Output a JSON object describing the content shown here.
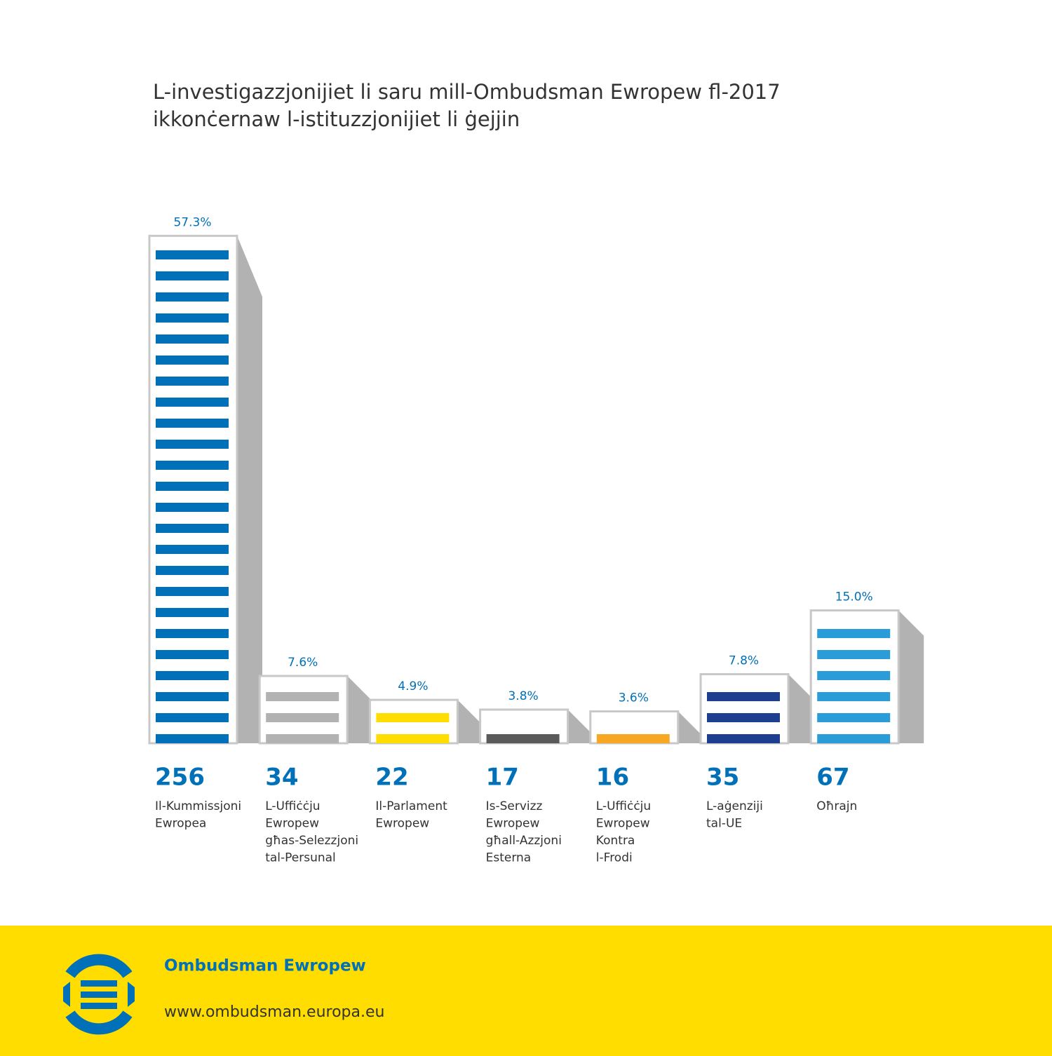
{
  "chart_data": {
    "type": "bar",
    "title": [
      "L-investigazzjonijiet li saru mill-Ombudsman Ewropew fl-2017",
      "ikkonċernaw l-istituzzjonijiet li ġejjin"
    ],
    "categories": [
      "Il-Kummissjoni\nEwropea",
      "L-Uffiċċju\nEwropew\ngħas-Selezzjoni\ntal-Persunal",
      "Il-Parlament\nEwropew",
      "Is-Servizz\nEwropew\ngħall-Azzjoni\nEsterna",
      "L-Uffiċċju\nEwropew\nKontra\nl-Frodi",
      "L-aġenziji\ntal-UE",
      "Oħrajn"
    ],
    "values": [
      57.3,
      7.6,
      4.9,
      3.8,
      3.6,
      7.8,
      15.0
    ],
    "value_labels": [
      "57.3%",
      "7.6%",
      "4.9%",
      "3.8%",
      "3.6%",
      "7.8%",
      "15.0%"
    ],
    "counts": [
      256,
      34,
      22,
      17,
      16,
      35,
      67
    ],
    "colors": [
      "#0070b8",
      "#b2b2b2",
      "#ffdd00",
      "#5a5a5a",
      "#f8a722",
      "#1e3f8f",
      "#2a9cd8"
    ]
  },
  "footer": {
    "name": "Ombudsman Ewropew",
    "url": "www.ombudsman.europa.eu"
  }
}
